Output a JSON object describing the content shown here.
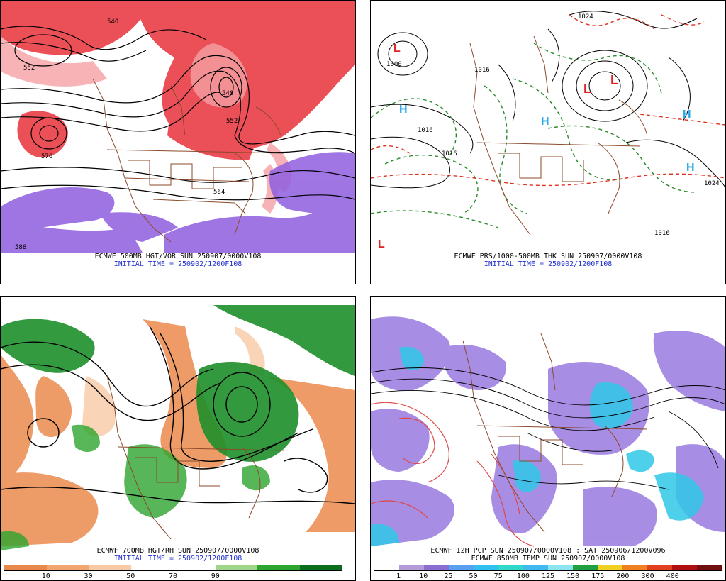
{
  "panels": [
    {
      "id": "p1",
      "caption_line1": "ECMWF 500MB HGT/VOR SUN 250907/0000V108",
      "caption_line2": "INITIAL TIME = 250902/1200F108",
      "labels": [
        "540",
        "552",
        "576",
        "540",
        "552",
        "564",
        "588"
      ]
    },
    {
      "id": "p2",
      "caption_line1": "ECMWF PRS/1000-500MB THK SUN 250907/0000V108",
      "caption_line2": "INITIAL TIME = 250902/1200F108",
      "pressure_labels": [
        "1000",
        "1016",
        "1016",
        "1024",
        "1016",
        "1024",
        "1016"
      ],
      "symbols": [
        "L",
        "H",
        "H",
        "L",
        "L",
        "H",
        "H",
        "L"
      ]
    },
    {
      "id": "p3",
      "caption_line1": "ECMWF 700MB HGT/RH SUN 250907/0000V108",
      "caption_line2": "INITIAL TIME = 250902/1200F108",
      "colorbar": {
        "colors": [
          "#e8884a",
          "#f0a66e",
          "#f7c9a4",
          "#ffffff",
          "#ffffff",
          "#9ed68a",
          "#2ea52e",
          "#0a6e1e"
        ],
        "labels": [
          "10",
          "30",
          "50",
          "70",
          "90"
        ]
      }
    },
    {
      "id": "p4",
      "caption_line1": "ECMWF 12H PCP SUN 250907/0000V108 : SAT 250906/1200V096",
      "caption_line2": "ECMWF 850MB TEMP SUN 250907/0000V108",
      "colorbar": {
        "colors": [
          "#ffffff",
          "#b59ad8",
          "#8b6fd0",
          "#5aa0f0",
          "#30c0f0",
          "#30d8c8",
          "#40b8f0",
          "#8ce4f0",
          "#20a040",
          "#f0d020",
          "#f08020",
          "#e04020",
          "#b01010",
          "#701010"
        ],
        "labels": [
          "1",
          "10",
          "25",
          "50",
          "75",
          "100",
          "125",
          "150",
          "175",
          "200",
          "300",
          "400"
        ]
      }
    }
  ],
  "colors": {
    "vorticity_red": "#e8313a",
    "vorticity_pink": "#f5a0a4",
    "vorticity_purple": "#8f5ee0",
    "border_brown": "#8b4a2a",
    "thickness_red": "#e03020",
    "thickness_green": "#2a8a2a",
    "high_blue": "#2aa8e8",
    "low_red": "#e02020",
    "rh_green": "#1e8f2a",
    "rh_orange": "#eb8a4d",
    "pcp_purple": "#9a7ae0",
    "pcp_cyan": "#30c8e8"
  }
}
